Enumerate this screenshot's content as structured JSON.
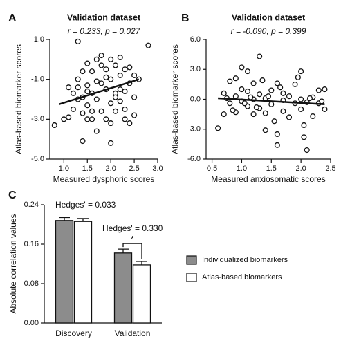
{
  "chart_data": [
    {
      "type": "scatter",
      "panel_label": "A",
      "title": "Validation dataset",
      "subtitle": "r = 0.233, p = 0.027",
      "x_label": "Measured dysphoric scores",
      "y_label": "Atlas-based biomarker scores",
      "xlim": [
        0.7,
        3.0
      ],
      "ylim": [
        -5,
        1
      ],
      "xticks": [
        {
          "value": 1,
          "label": "1.0"
        },
        1.5,
        {
          "value": 2,
          "label": "2.0"
        },
        2.5,
        {
          "value": 3,
          "label": "3.0"
        }
      ],
      "yticks": [
        {
          "value": -5,
          "label": "-5.0"
        },
        {
          "value": -3,
          "label": "-3.0"
        },
        {
          "value": -1,
          "label": "-1.0"
        },
        {
          "value": 1,
          "label": "1.0"
        }
      ],
      "x": [
        0.8,
        1.0,
        1.1,
        1.2,
        1.2,
        1.3,
        1.3,
        1.3,
        1.4,
        1.4,
        1.4,
        1.5,
        1.5,
        1.5,
        1.5,
        1.6,
        1.6,
        1.6,
        1.7,
        1.7,
        1.7,
        1.8,
        1.8,
        1.8,
        1.8,
        1.9,
        1.9,
        1.9,
        2.0,
        2.0,
        2.0,
        2.0,
        2.1,
        2.1,
        2.1,
        2.2,
        2.2,
        2.2,
        2.2,
        2.3,
        2.3,
        2.3,
        2.4,
        2.4,
        2.4,
        2.5,
        2.5,
        2.5,
        2.6,
        2.8,
        1.4,
        1.6,
        1.9,
        2.0,
        1.3,
        1.1,
        1.7,
        2.3,
        1.5,
        2.1
      ],
      "values": [
        -3.3,
        -3.0,
        -1.4,
        -1.7,
        -2.5,
        0.9,
        -1.0,
        -2.0,
        -4.1,
        -2.7,
        -0.6,
        -1.3,
        -2.3,
        -3.0,
        -0.2,
        -1.7,
        -3.0,
        -0.6,
        -1.1,
        -2.0,
        -3.6,
        -1.2,
        -2.6,
        -0.3,
        0.2,
        -1.5,
        -3.0,
        -0.9,
        -4.2,
        -2.2,
        -1.0,
        0.0,
        -0.3,
        -1.7,
        -2.6,
        -0.8,
        -1.5,
        -2.1,
        0.1,
        -0.5,
        -2.5,
        -1.6,
        -1.2,
        -3.2,
        -0.4,
        -0.8,
        -1.9,
        -2.8,
        -1.0,
        0.7,
        -1.9,
        -2.6,
        -0.5,
        -3.2,
        -1.4,
        -2.9,
        0.0,
        -3.0,
        -1.6,
        -1.9
      ],
      "fit_x": [
        0.9,
        2.6
      ],
      "fit_values": [
        -2.25,
        -1.0
      ]
    },
    {
      "type": "scatter",
      "panel_label": "B",
      "title": "Validation dataset",
      "subtitle": "r = -0.090, p = 0.399",
      "x_label": "Measured anxiosomatic scores",
      "y_label": "Atlas-based biomarker scores",
      "xlim": [
        0.4,
        2.5
      ],
      "ylim": [
        -6,
        6
      ],
      "xticks": [
        0.5,
        {
          "value": 1,
          "label": "1.0"
        },
        1.5,
        {
          "value": 2,
          "label": "2.0"
        },
        2.5
      ],
      "yticks": [
        {
          "value": -6,
          "label": "-6.0"
        },
        {
          "value": -3,
          "label": "-3.0"
        },
        {
          "value": 0,
          "label": "0.0"
        },
        {
          "value": 3,
          "label": "3.0"
        },
        {
          "value": 6,
          "label": "6.0"
        }
      ],
      "x": [
        0.6,
        0.7,
        0.7,
        0.8,
        0.8,
        0.9,
        0.9,
        0.9,
        1.0,
        1.0,
        1.0,
        1.1,
        1.1,
        1.1,
        1.2,
        1.2,
        1.2,
        1.3,
        1.3,
        1.3,
        1.35,
        1.4,
        1.4,
        1.4,
        1.5,
        1.5,
        1.6,
        1.6,
        1.6,
        1.7,
        1.7,
        1.7,
        1.8,
        1.8,
        1.9,
        1.9,
        2.0,
        2.0,
        2.0,
        2.05,
        2.1,
        2.1,
        2.2,
        2.2,
        2.3,
        2.3,
        2.4,
        2.4,
        0.75,
        0.85,
        1.05,
        1.15,
        1.25,
        1.45,
        1.55,
        1.65,
        1.95,
        2.15,
        2.35,
        2.05
      ],
      "values": [
        -2.9,
        0.6,
        -1.5,
        1.8,
        -0.4,
        0.3,
        -1.3,
        2.1,
        3.2,
        -0.2,
        1.0,
        2.8,
        -0.7,
        0.8,
        0.0,
        -1.5,
        1.6,
        4.3,
        -0.9,
        0.5,
        1.9,
        0.1,
        -1.4,
        -3.1,
        0.9,
        -0.5,
        1.6,
        -3.5,
        -4.6,
        0.6,
        -1.2,
        -0.1,
        0.3,
        -1.8,
        -0.4,
        1.5,
        2.8,
        -1.0,
        0.0,
        -3.8,
        -5.1,
        -0.3,
        0.2,
        -1.7,
        0.9,
        -0.4,
        1.0,
        -1.0,
        0.1,
        -1.1,
        -0.4,
        0.2,
        -0.8,
        0.3,
        -2.2,
        1.2,
        2.2,
        0.1,
        -0.2,
        -2.6
      ],
      "fit_x": [
        0.6,
        2.4
      ],
      "fit_values": [
        0.1,
        -0.5
      ]
    },
    {
      "type": "bar",
      "panel_label": "C",
      "y_label": "Absolute correlation values",
      "categories": [
        "Discovery",
        "Validation"
      ],
      "ylim": [
        0,
        0.24
      ],
      "yticks": [
        {
          "value": 0,
          "label": "0.00"
        },
        0.08,
        0.16,
        0.24
      ],
      "series": [
        {
          "name": "Individualized biomarkers",
          "color": "#8c8c8c",
          "values": [
            0.208,
            0.142
          ],
          "errors": [
            0.006,
            0.008
          ]
        },
        {
          "name": "Atlas-based biomarkers",
          "color": "#ffffff",
          "values": [
            0.206,
            0.118
          ],
          "errors": [
            0.006,
            0.007
          ]
        }
      ],
      "annotations": [
        "Hedges' = 0.033",
        "Hedges' = 0.330",
        "*"
      ]
    }
  ]
}
